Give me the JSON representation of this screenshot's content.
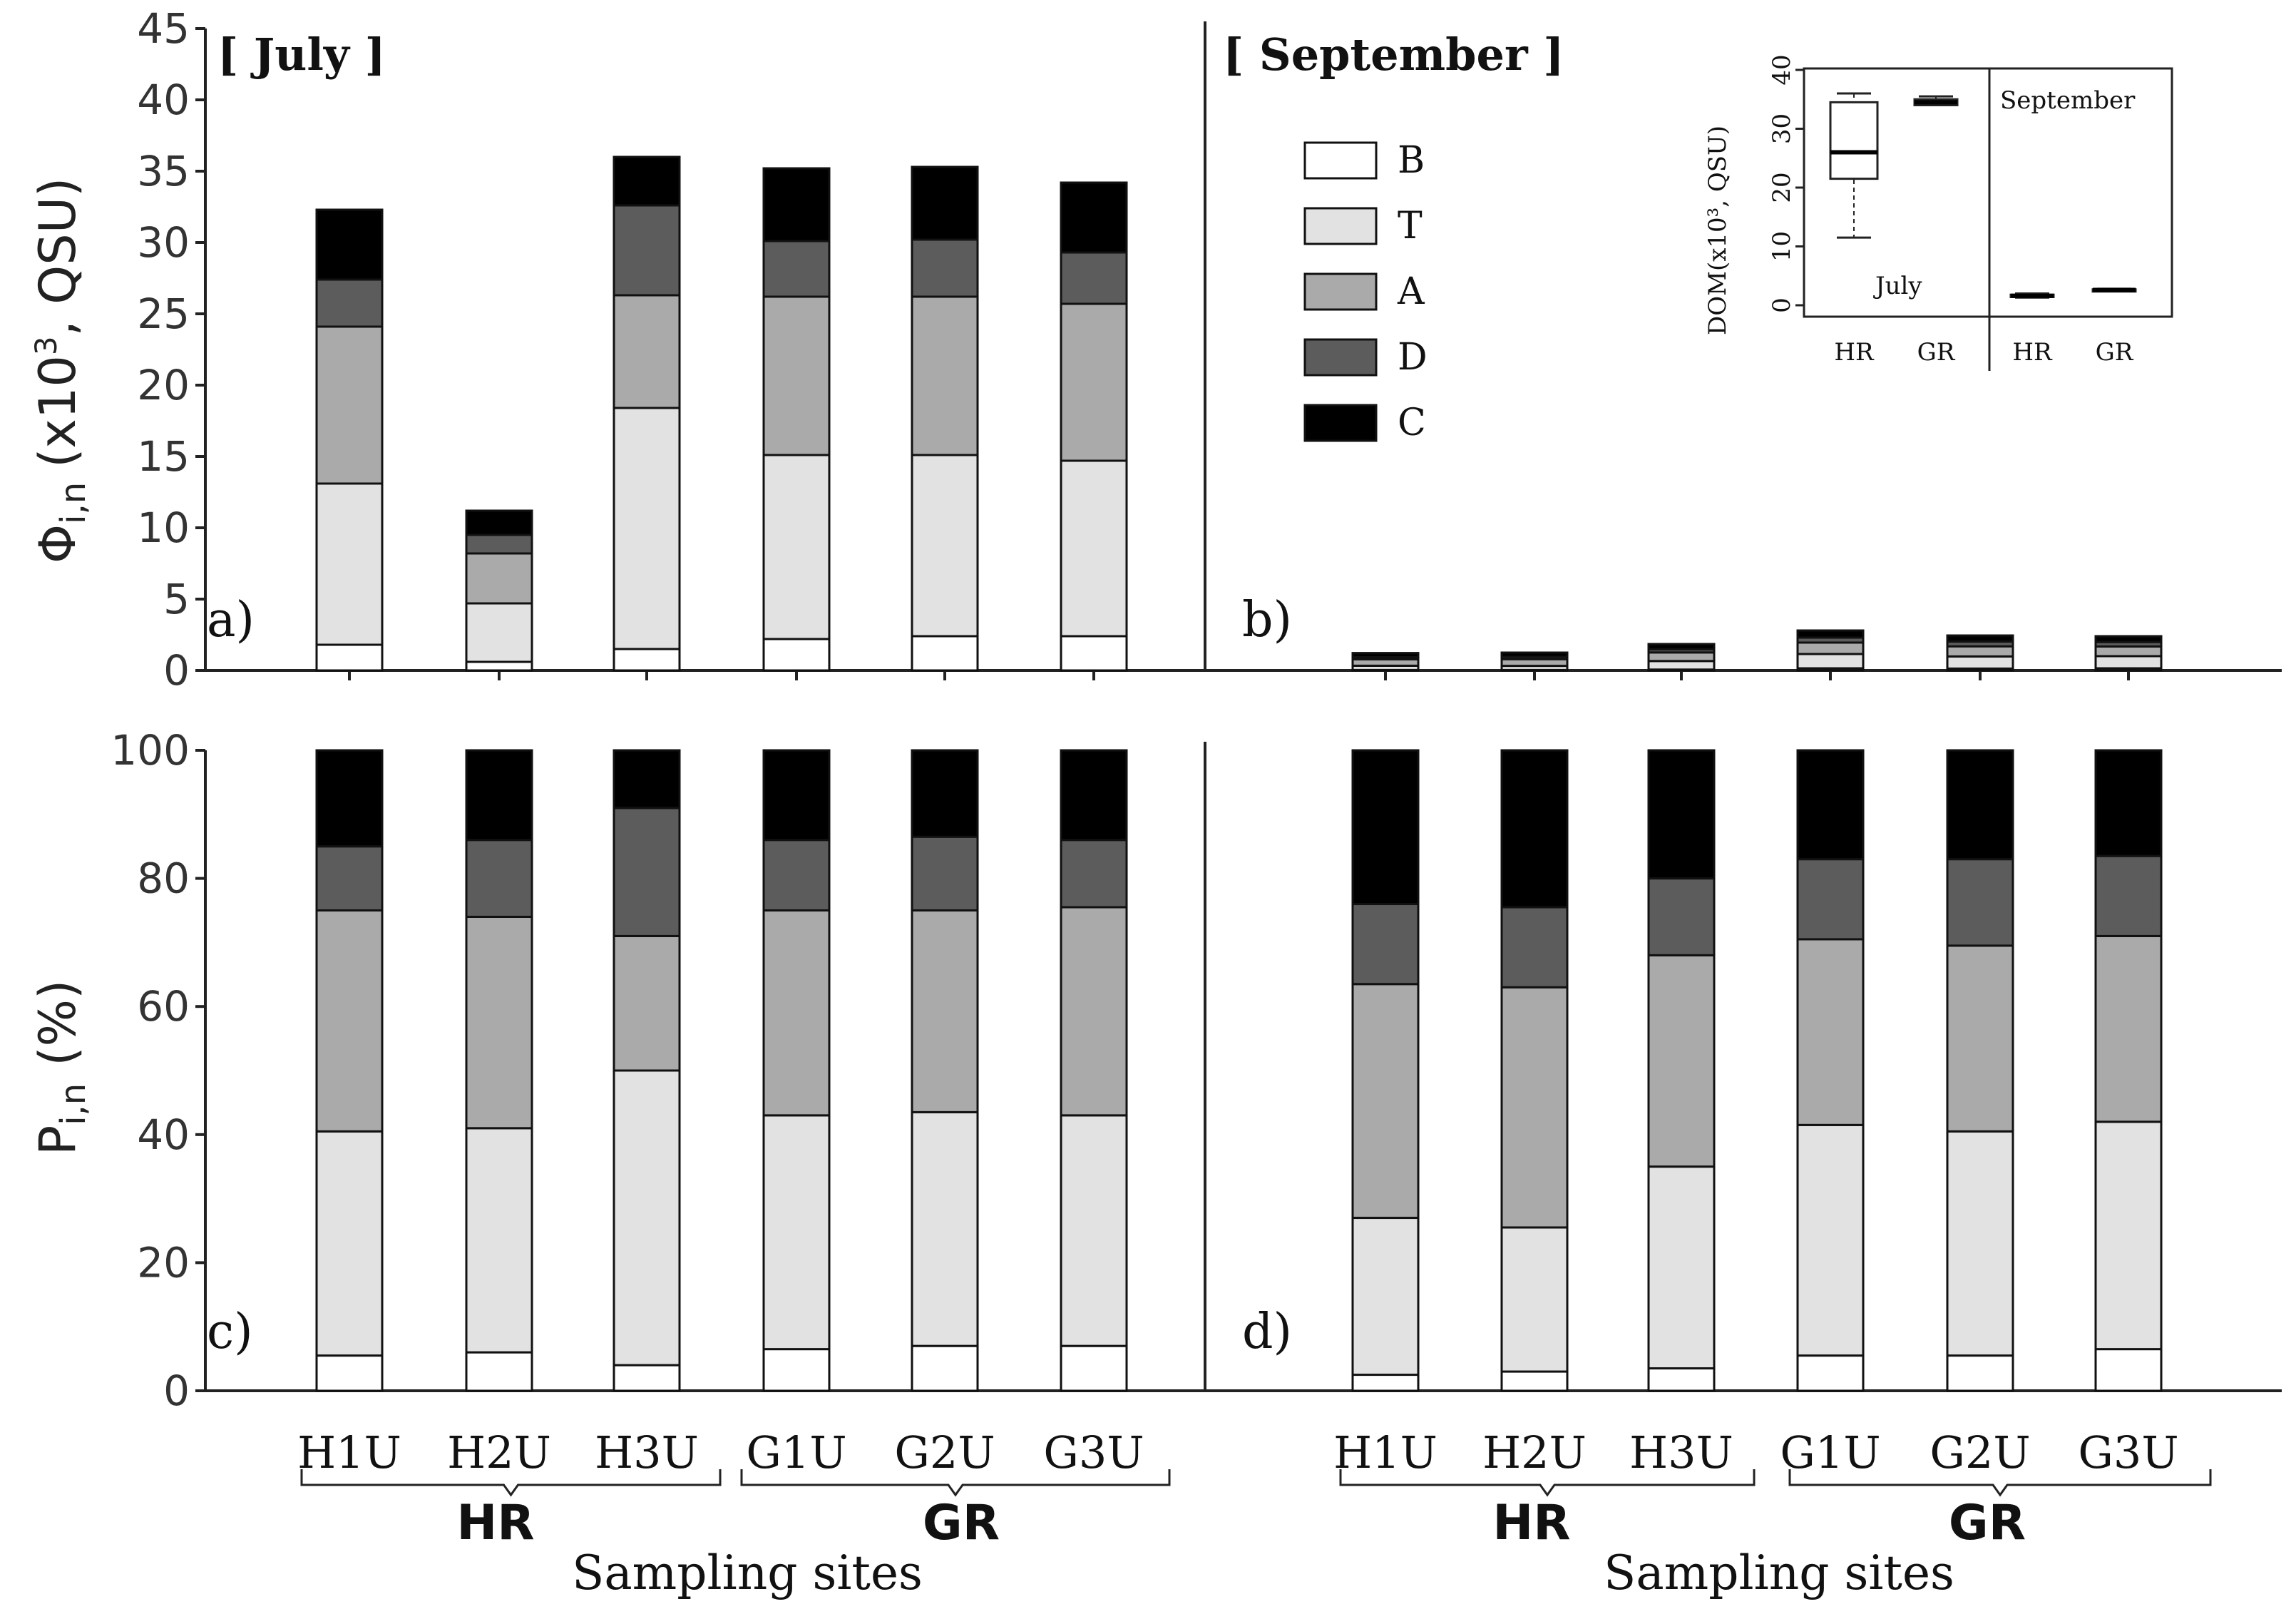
{
  "chart_data": [
    {
      "panel": "a)",
      "type": "bar",
      "stacked": true,
      "title": "[ July ]",
      "ylabel": "Φi,n (x10³, QSU)",
      "ylim": [
        0,
        45
      ],
      "yticks": [
        0,
        5,
        10,
        15,
        20,
        25,
        30,
        35,
        40,
        45
      ],
      "categories": [
        "H1U",
        "H2U",
        "H3U",
        "G1U",
        "G2U",
        "G3U"
      ],
      "series": [
        {
          "name": "B",
          "values": [
            1.8,
            0.6,
            1.5,
            2.2,
            2.4,
            2.4
          ]
        },
        {
          "name": "T",
          "values": [
            11.3,
            4.1,
            16.9,
            12.9,
            12.7,
            12.3
          ]
        },
        {
          "name": "A",
          "values": [
            11.0,
            3.5,
            7.9,
            11.1,
            11.1,
            11.0
          ]
        },
        {
          "name": "D",
          "values": [
            3.3,
            1.3,
            6.3,
            3.9,
            4.0,
            3.6
          ]
        },
        {
          "name": "C",
          "values": [
            4.9,
            1.7,
            3.4,
            5.1,
            5.1,
            4.9
          ]
        }
      ]
    },
    {
      "panel": "b)",
      "type": "bar",
      "stacked": true,
      "title": "[ September ]",
      "ylim": [
        0,
        45
      ],
      "categories": [
        "H1U",
        "H2U",
        "H3U",
        "G1U",
        "G2U",
        "G3U"
      ],
      "series": [
        {
          "name": "B",
          "values": [
            0.03,
            0.03,
            0.06,
            0.15,
            0.13,
            0.15
          ]
        },
        {
          "name": "T",
          "values": [
            0.3,
            0.29,
            0.6,
            1.0,
            0.85,
            0.85
          ]
        },
        {
          "name": "A",
          "values": [
            0.45,
            0.47,
            0.6,
            0.8,
            0.71,
            0.68
          ]
        },
        {
          "name": "D",
          "values": [
            0.15,
            0.16,
            0.22,
            0.35,
            0.33,
            0.31
          ]
        },
        {
          "name": "C",
          "values": [
            0.29,
            0.3,
            0.37,
            0.5,
            0.43,
            0.41
          ]
        }
      ]
    },
    {
      "panel": "c)",
      "type": "bar",
      "stacked": true,
      "ylabel": "Pi,n (%)",
      "ylim": [
        0,
        100
      ],
      "yticks": [
        0,
        20,
        40,
        60,
        80,
        100
      ],
      "categories": [
        "H1U",
        "H2U",
        "H3U",
        "G1U",
        "G2U",
        "G3U"
      ],
      "series": [
        {
          "name": "B",
          "values": [
            5.5,
            6,
            4,
            6.5,
            7,
            7
          ]
        },
        {
          "name": "T",
          "values": [
            35,
            35,
            46,
            36.5,
            36.5,
            36
          ]
        },
        {
          "name": "A",
          "values": [
            34.5,
            33,
            21,
            32,
            31.5,
            32.5
          ]
        },
        {
          "name": "D",
          "values": [
            10,
            12,
            20,
            11,
            11.5,
            10.5
          ]
        },
        {
          "name": "C",
          "values": [
            15,
            14,
            9,
            14,
            13.5,
            14
          ]
        }
      ]
    },
    {
      "panel": "d)",
      "type": "bar",
      "stacked": true,
      "ylim": [
        0,
        100
      ],
      "categories": [
        "H1U",
        "H2U",
        "H3U",
        "G1U",
        "G2U",
        "G3U"
      ],
      "series": [
        {
          "name": "B",
          "values": [
            2.5,
            3,
            3.5,
            5.5,
            5.5,
            6.5
          ]
        },
        {
          "name": "T",
          "values": [
            24.5,
            22.5,
            31.5,
            36,
            35,
            35.5
          ]
        },
        {
          "name": "A",
          "values": [
            36.5,
            37.5,
            33,
            29,
            29,
            29
          ]
        },
        {
          "name": "D",
          "values": [
            12.5,
            12.5,
            12,
            12.5,
            13.5,
            12.5
          ]
        },
        {
          "name": "C",
          "values": [
            24,
            24.5,
            20,
            17,
            17,
            16.5
          ]
        }
      ]
    },
    {
      "panel": "inset",
      "type": "box",
      "ylabel": "DOM(x10³, QSU)",
      "ylim": [
        0,
        40
      ],
      "yticks": [
        0,
        10,
        20,
        30,
        40
      ],
      "groups": [
        "HR",
        "GR",
        "HR",
        "GR"
      ],
      "periods": [
        "July",
        "September"
      ],
      "boxes": [
        {
          "period": "July",
          "group": "HR",
          "min": 11.5,
          "q1": 21.5,
          "median": 26,
          "q3": 34.5,
          "max": 36
        },
        {
          "period": "July",
          "group": "GR",
          "min": 34,
          "q1": 34,
          "median": 34.5,
          "q3": 35,
          "max": 35.5
        },
        {
          "period": "September",
          "group": "HR",
          "min": 1.3,
          "q1": 1.4,
          "median": 1.6,
          "q3": 1.8,
          "max": 2.0
        },
        {
          "period": "September",
          "group": "GR",
          "min": 2.5,
          "q1": 2.5,
          "median": 2.6,
          "q3": 2.7,
          "max": 2.8
        }
      ]
    }
  ],
  "legend": [
    {
      "label": "B",
      "color": "#ffffff"
    },
    {
      "label": "T",
      "color": "#e2e2e2"
    },
    {
      "label": "A",
      "color": "#aaaaaa"
    },
    {
      "label": "D",
      "color": "#5c5c5c"
    },
    {
      "label": "C",
      "color": "#000000"
    }
  ],
  "labels": {
    "title_july": "[ July ]",
    "title_sept": "[ September ]",
    "ylabel_top_main": "Φ",
    "ylabel_top_sub": "i,n",
    "ylabel_top_rest": "(x10",
    "ylabel_top_sup": "3",
    "ylabel_top_end": ", QSU)",
    "ylabel_bot_main": "P",
    "ylabel_bot_sub": "i,n",
    "ylabel_bot_rest": "(%)",
    "panel_a": "a)",
    "panel_b": "b)",
    "panel_c": "c)",
    "panel_d": "d)",
    "group_hr": "HR",
    "group_gr": "GR",
    "xlabel": "Sampling sites",
    "inset_july": "July",
    "inset_sept": "September",
    "inset_ylabel": "DOM(x10³, QSU)"
  }
}
